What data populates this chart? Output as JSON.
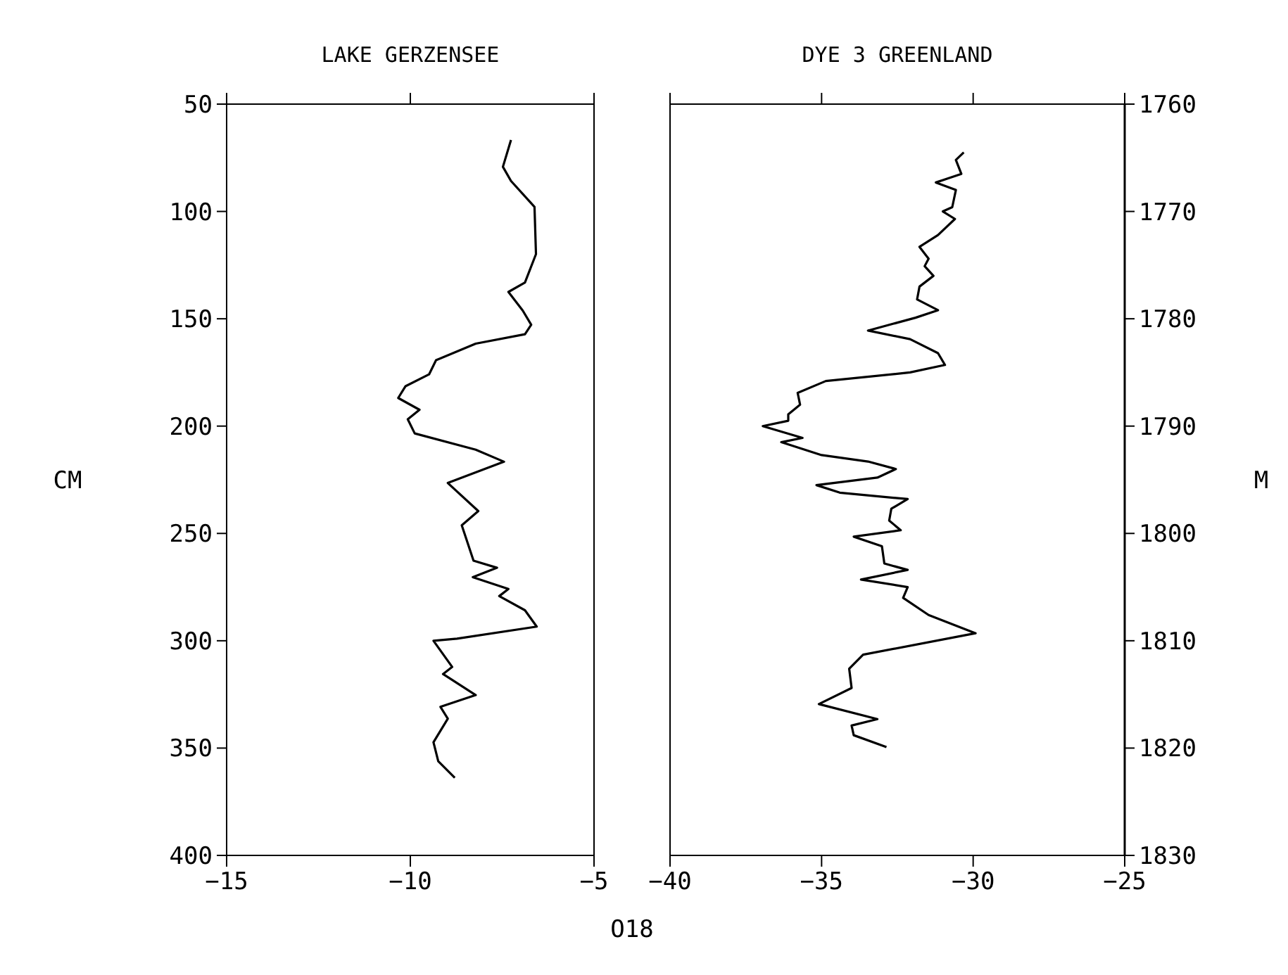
{
  "chart_data": [
    {
      "type": "line",
      "title": "LAKE GERZENSEE",
      "xlabel": "O18",
      "ylabel": "CM",
      "xlim": [
        -15,
        -5
      ],
      "xticks": [
        -15,
        -10,
        -5
      ],
      "ylim": [
        400,
        50
      ],
      "yticks": [
        50,
        100,
        150,
        200,
        250,
        300,
        350,
        400
      ],
      "marker": "none",
      "line_style": "solid",
      "series": [
        {
          "color": "#000000",
          "x": [
            -7.26,
            -7.48,
            -7.26,
            -6.62,
            -6.58,
            -6.88,
            -7.33,
            -6.94,
            -6.71,
            -6.88,
            -8.22,
            -9.3,
            -9.49,
            -10.13,
            -10.33,
            -9.75,
            -10.07,
            -9.88,
            -8.22,
            -7.45,
            -8.98,
            -8.15,
            -8.6,
            -8.28,
            -7.64,
            -8.3,
            -7.33,
            -7.58,
            -6.88,
            -6.56,
            -8.73,
            -9.37,
            -8.86,
            -9.11,
            -8.22,
            -9.18,
            -8.98,
            -9.37,
            -9.24,
            -8.79
          ],
          "values": [
            66.7,
            79.2,
            85.8,
            97.9,
            119.9,
            133.1,
            137.5,
            146.2,
            152.8,
            157.2,
            161.6,
            169.3,
            175.9,
            181.4,
            186.9,
            192.4,
            196.8,
            203.4,
            211,
            216.6,
            226.5,
            239.6,
            246.2,
            262.7,
            266,
            270.4,
            275.9,
            279.2,
            285.8,
            293.4,
            299,
            300,
            312.2,
            315.5,
            325.3,
            330.8,
            336.3,
            347.3,
            356.1,
            363.8
          ]
        }
      ]
    },
    {
      "type": "line",
      "title": "DYE 3 GREENLAND",
      "y2label": "M",
      "xlim": [
        -40,
        -25
      ],
      "xticks": [
        -40,
        -35,
        -30,
        -25
      ],
      "y2lim": [
        1830,
        1760
      ],
      "y2ticks": [
        1760,
        1770,
        1780,
        1790,
        1800,
        1810,
        1820,
        1830
      ],
      "marker": "none",
      "line_style": "solid",
      "series": [
        {
          "color": "#000000",
          "axis": "y2",
          "x": [
            -30.31,
            -30.57,
            -30.39,
            -31.23,
            -30.57,
            -30.69,
            -31.0,
            -30.6,
            -31.16,
            -31.77,
            -31.47,
            -31.6,
            -31.31,
            -31.77,
            -31.85,
            -31.16,
            -31.9,
            -33.47,
            -32.08,
            -31.16,
            -30.93,
            -32.08,
            -34.86,
            -35.79,
            -35.71,
            -36.1,
            -36.1,
            -36.94,
            -35.63,
            -36.33,
            -35.0,
            -33.47,
            -32.55,
            -33.16,
            -35.17,
            -34.4,
            -32.16,
            -32.7,
            -32.77,
            -32.39,
            -33.94,
            -33.01,
            -32.93,
            -32.16,
            -33.7,
            -32.16,
            -32.31,
            -31.47,
            -29.92,
            -33.63,
            -34.09,
            -34.01,
            -35.09,
            -33.16,
            -34.01,
            -33.94,
            -32.86
          ],
          "values": [
            1764.5,
            1765.2,
            1766.5,
            1767.3,
            1768,
            1769.6,
            1770,
            1770.7,
            1772.2,
            1773.3,
            1774.4,
            1775.1,
            1776,
            1777,
            1778.2,
            1779.2,
            1779.9,
            1781.1,
            1781.9,
            1783.2,
            1784.3,
            1785,
            1785.8,
            1786.9,
            1788,
            1788.9,
            1789.5,
            1790,
            1791.1,
            1791.5,
            1792.7,
            1793.3,
            1794,
            1794.8,
            1795.5,
            1796.2,
            1796.8,
            1797.7,
            1798.8,
            1799.7,
            1800.3,
            1801.2,
            1802.8,
            1803.4,
            1804.3,
            1805,
            1806,
            1807.6,
            1809.3,
            1811.3,
            1812.6,
            1814.4,
            1815.9,
            1817.3,
            1817.9,
            1818.8,
            1819.9
          ]
        }
      ]
    }
  ]
}
